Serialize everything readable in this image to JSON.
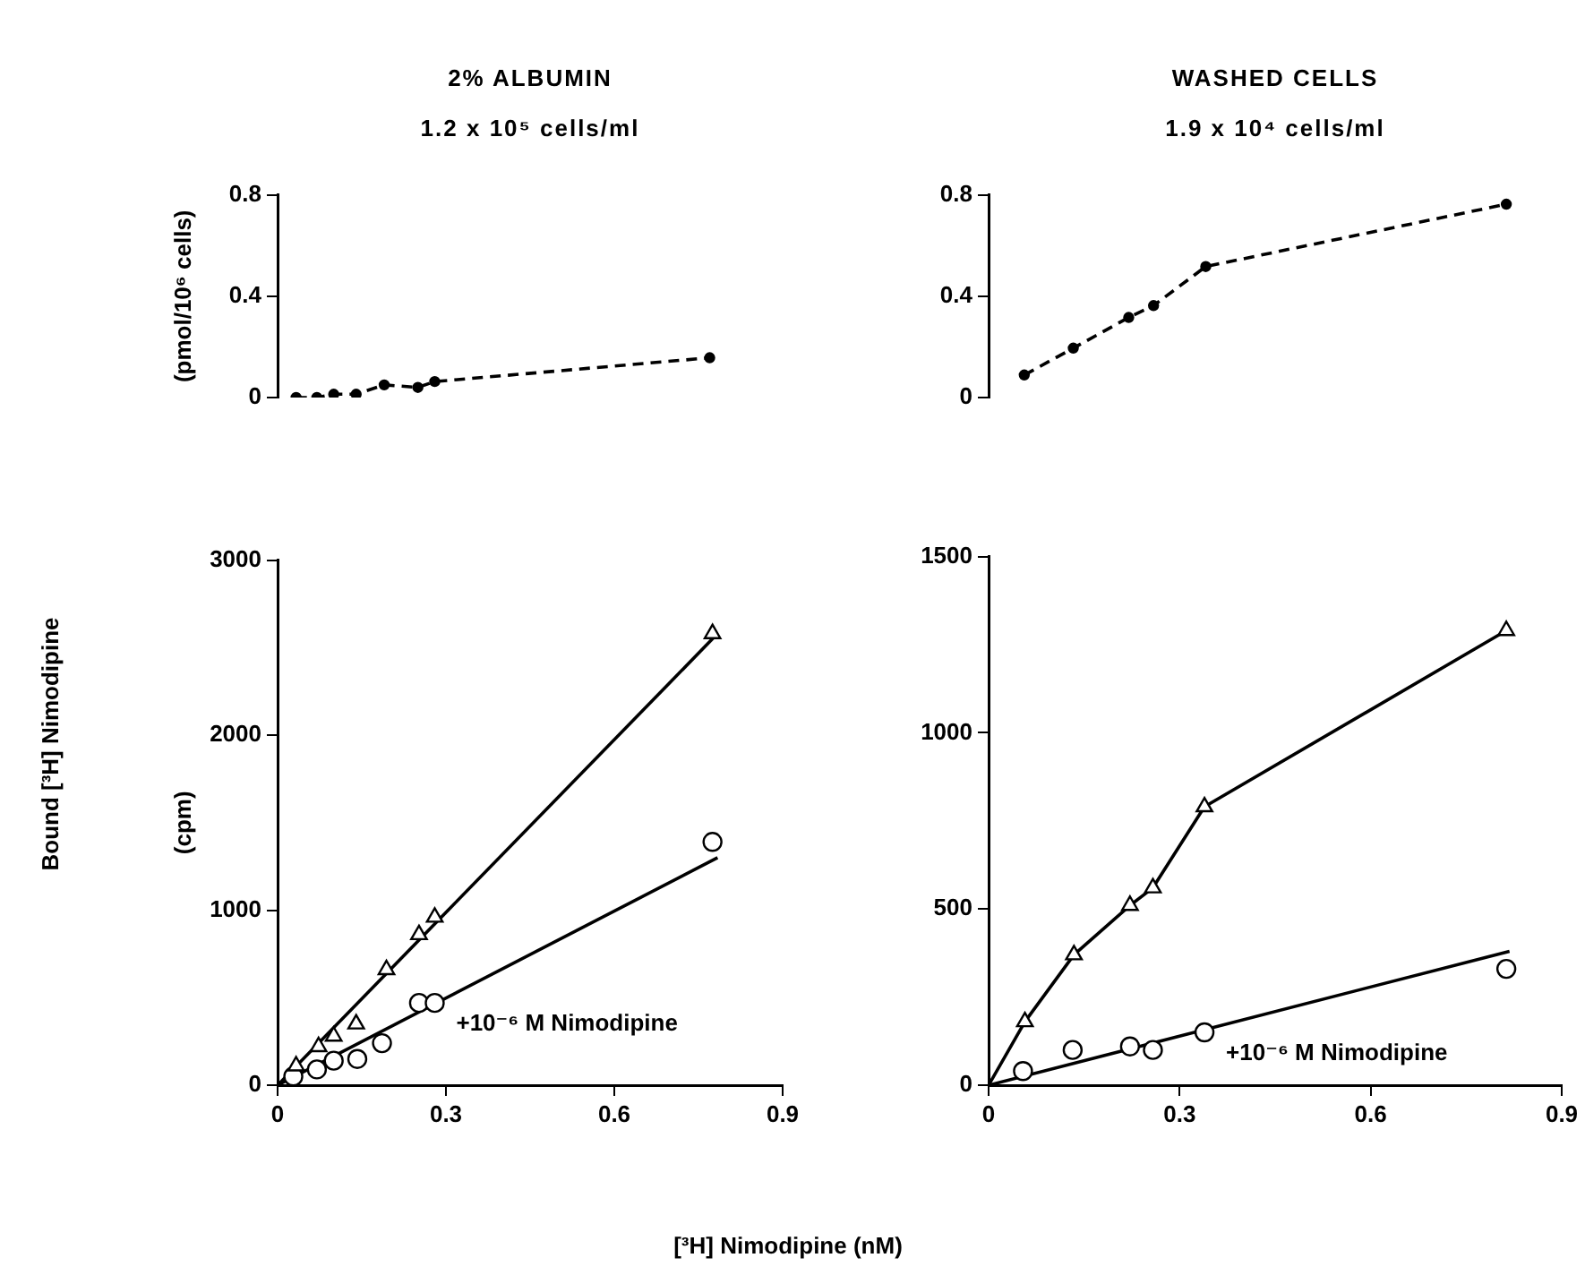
{
  "chart_data": [
    {
      "type": "scatter",
      "title": "2% ALBUMIN",
      "subtitle": "1.2 x 10⁵ cells/ml",
      "ylabel": "(pmol/10⁶ cells)",
      "xlim": [
        0,
        0.9
      ],
      "ylim": [
        0,
        0.8
      ],
      "yticks": [
        0,
        0.4,
        0.8
      ],
      "tick_labels": "y",
      "grid": false,
      "legend": false,
      "series": [
        {
          "type": "line",
          "color": "#000000",
          "marker": "circle",
          "line_style": "dashed",
          "x": [
            0.033,
            0.07,
            0.1,
            0.14,
            0.19,
            0.25,
            0.28,
            0.77
          ],
          "values": [
            0,
            0,
            0.013,
            0.013,
            0.05,
            0.04,
            0.063,
            0.157
          ]
        }
      ]
    },
    {
      "type": "scatter",
      "title": "WASHED CELLS",
      "subtitle": "1.9 x 10⁴ cells/ml",
      "xlim": [
        0,
        0.9
      ],
      "ylim": [
        0,
        0.8
      ],
      "yticks": [
        0,
        0.4,
        0.8
      ],
      "tick_labels": "y",
      "grid": false,
      "legend": false,
      "series": [
        {
          "type": "line",
          "color": "#000000",
          "marker": "circle",
          "line_style": "dashed",
          "x": [
            0.056,
            0.133,
            0.22,
            0.259,
            0.341,
            0.813
          ],
          "values": [
            0.089,
            0.195,
            0.316,
            0.363,
            0.517,
            0.763
          ]
        }
      ]
    },
    {
      "type": "scatter",
      "ylabel": "(cpm)",
      "xlabel": "[³H] Nimodipine (nM)",
      "annotations": [
        "Bound [³H] Nimodipine"
      ],
      "xlim": [
        0,
        0.9
      ],
      "xticks": [
        0,
        0.3,
        0.6,
        0.9
      ],
      "ylim": [
        0,
        3000
      ],
      "yticks": [
        0,
        1000,
        2000,
        3000
      ],
      "grid": false,
      "legend": false,
      "series": [
        {
          "type": "scatter",
          "color": "#000000",
          "marker": "triangle",
          "x": [
            0.033,
            0.073,
            0.1,
            0.14,
            0.194,
            0.252,
            0.28,
            0.775
          ],
          "values": [
            110,
            220,
            280,
            350,
            660,
            860,
            960,
            2580
          ]
        },
        {
          "type": "scatter",
          "name": "+10⁻⁶ M Nimodipine",
          "color": "#000000",
          "marker": "circle",
          "x": [
            0.028,
            0.07,
            0.1,
            0.142,
            0.186,
            0.252,
            0.28,
            0.775
          ],
          "values": [
            50,
            90,
            140,
            150,
            240,
            470,
            470,
            1390
          ]
        },
        {
          "type": "line",
          "color": "#000000",
          "marker": "none",
          "line_style": "solid",
          "x": [
            0,
            0.778
          ],
          "values": [
            0,
            2560
          ]
        },
        {
          "type": "line",
          "color": "#000000",
          "marker": "none",
          "line_style": "solid",
          "x": [
            0,
            0.784
          ],
          "values": [
            0,
            1300
          ]
        }
      ]
    },
    {
      "type": "scatter",
      "xlim": [
        0,
        0.9
      ],
      "xticks": [
        0,
        0.3,
        0.6,
        0.9
      ],
      "ylim": [
        0,
        1500
      ],
      "yticks": [
        0,
        500,
        1000,
        1500
      ],
      "grid": false,
      "legend": false,
      "series": [
        {
          "type": "scatter",
          "color": "#000000",
          "marker": "triangle",
          "x": [
            0.057,
            0.134,
            0.222,
            0.258,
            0.339,
            0.813
          ],
          "values": [
            180,
            370,
            510,
            560,
            790,
            1290
          ]
        },
        {
          "type": "scatter",
          "name": "+10⁻⁶ M Nimodipine",
          "color": "#000000",
          "marker": "circle",
          "x": [
            0.054,
            0.132,
            0.222,
            0.258,
            0.339,
            0.813
          ],
          "values": [
            40,
            100,
            110,
            100,
            150,
            330
          ]
        },
        {
          "type": "line",
          "color": "#000000",
          "marker": "none",
          "line_style": "solid",
          "x": [
            0,
            0.057,
            0.134,
            0.222,
            0.258,
            0.339,
            0.813
          ],
          "values": [
            0,
            180,
            370,
            510,
            560,
            790,
            1290
          ]
        },
        {
          "type": "line",
          "color": "#000000",
          "marker": "none",
          "line_style": "solid",
          "x": [
            0,
            0.818
          ],
          "values": [
            0,
            380
          ]
        }
      ]
    }
  ]
}
